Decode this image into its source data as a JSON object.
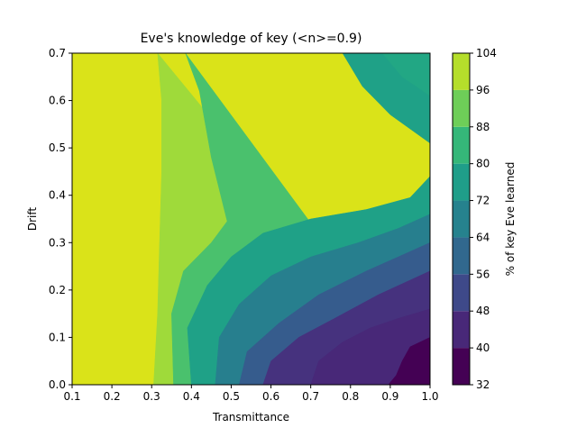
{
  "chart_data": {
    "type": "contour",
    "title": "Eve's knowledge of key (<n>=0.9)",
    "xlabel": "Transmittance",
    "ylabel": "Drift",
    "xlim": [
      0.1,
      1.0
    ],
    "ylim": [
      0.0,
      0.7
    ],
    "x_ticks": [
      "0.1",
      "0.2",
      "0.3",
      "0.4",
      "0.5",
      "0.6",
      "0.7",
      "0.8",
      "0.9",
      "1.0"
    ],
    "y_ticks": [
      "0.0",
      "0.1",
      "0.2",
      "0.3",
      "0.4",
      "0.5",
      "0.6",
      "0.7"
    ],
    "colorbar": {
      "label": "% of key Eve learned",
      "levels": [
        32,
        40,
        48,
        56,
        64,
        72,
        80,
        88,
        96,
        104
      ],
      "tick_labels": [
        "32",
        "40",
        "48",
        "56",
        "64",
        "72",
        "80",
        "88",
        "96",
        "104"
      ],
      "colors": [
        "#440154",
        "#482878",
        "#3e4989",
        "#31688e",
        "#26828e",
        "#1f9e89",
        "#35b779",
        "#6ece58",
        "#b5de2b",
        "#fde725"
      ]
    },
    "band_colors": [
      "#46327e",
      "#365c8d",
      "#277f8e",
      "#1fa187",
      "#4ac16d",
      "#9fda3a",
      "#dae319"
    ],
    "contour_lines": [
      {
        "level": 96,
        "points": [
          [
            0.305,
            0.0
          ],
          [
            0.315,
            0.15
          ],
          [
            0.32,
            0.3
          ],
          [
            0.325,
            0.45
          ],
          [
            0.325,
            0.6
          ],
          [
            0.315,
            0.7
          ]
        ]
      },
      {
        "level": 88,
        "points": [
          [
            0.355,
            0.0
          ],
          [
            0.35,
            0.15
          ],
          [
            0.38,
            0.24
          ],
          [
            0.45,
            0.3
          ],
          [
            0.49,
            0.345
          ],
          [
            0.45,
            0.48
          ],
          [
            0.42,
            0.62
          ],
          [
            0.385,
            0.7
          ]
        ]
      },
      {
        "level": 80,
        "points": [
          [
            0.4,
            0.0
          ],
          [
            0.39,
            0.12
          ],
          [
            0.44,
            0.21
          ],
          [
            0.5,
            0.27
          ],
          [
            0.58,
            0.32
          ],
          [
            0.7,
            0.35
          ],
          [
            0.84,
            0.37
          ],
          [
            0.95,
            0.395
          ],
          [
            1.0,
            0.44
          ]
        ]
      },
      {
        "level": 72,
        "points": [
          [
            0.46,
            0.0
          ],
          [
            0.47,
            0.1
          ],
          [
            0.52,
            0.17
          ],
          [
            0.6,
            0.23
          ],
          [
            0.7,
            0.27
          ],
          [
            0.82,
            0.3
          ],
          [
            0.92,
            0.33
          ],
          [
            1.0,
            0.36
          ]
        ]
      },
      {
        "level": 64,
        "points": [
          [
            0.52,
            0.0
          ],
          [
            0.54,
            0.07
          ],
          [
            0.62,
            0.13
          ],
          [
            0.72,
            0.19
          ],
          [
            0.84,
            0.24
          ],
          [
            0.92,
            0.27
          ],
          [
            1.0,
            0.3
          ]
        ]
      },
      {
        "level": 56,
        "points": [
          [
            0.58,
            0.0
          ],
          [
            0.6,
            0.05
          ],
          [
            0.67,
            0.1
          ],
          [
            0.76,
            0.14
          ],
          [
            0.87,
            0.19
          ],
          [
            1.0,
            0.24
          ]
        ]
      },
      {
        "level": 48,
        "points": [
          [
            0.7,
            0.0
          ],
          [
            0.72,
            0.05
          ],
          [
            0.78,
            0.09
          ],
          [
            0.85,
            0.12
          ],
          [
            0.92,
            0.14
          ],
          [
            1.0,
            0.16
          ]
        ]
      },
      {
        "level": 40,
        "points": [
          [
            0.895,
            0.0
          ],
          [
            0.915,
            0.02
          ],
          [
            0.93,
            0.05
          ],
          [
            0.95,
            0.08
          ],
          [
            1.0,
            0.1
          ]
        ]
      }
    ],
    "upper_contour_lines": [
      {
        "level": 80,
        "points": [
          [
            0.78,
            0.7
          ],
          [
            0.83,
            0.63
          ],
          [
            0.9,
            0.57
          ],
          [
            1.0,
            0.51
          ]
        ]
      },
      {
        "level": 72,
        "points": [
          [
            0.88,
            0.7
          ],
          [
            0.93,
            0.65
          ],
          [
            1.0,
            0.61
          ]
        ]
      }
    ],
    "grid": false,
    "legend": "colorbar-right"
  }
}
